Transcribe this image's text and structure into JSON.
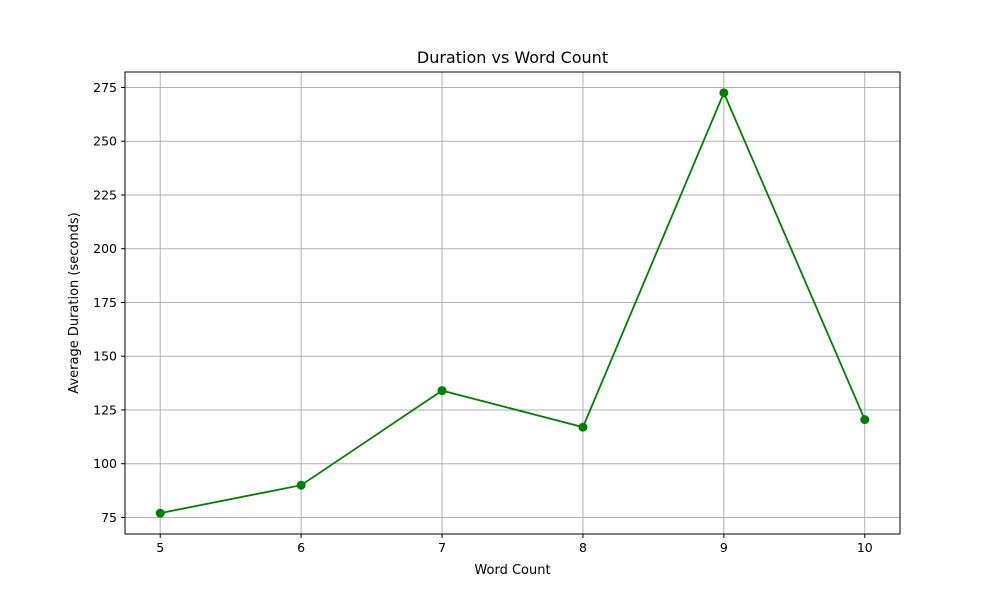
{
  "chart_data": {
    "type": "line",
    "title": "Duration vs Word Count",
    "xlabel": "Word Count",
    "ylabel": "Average Duration (seconds)",
    "x": [
      5,
      6,
      7,
      8,
      9,
      10
    ],
    "series": [
      {
        "values": [
          77,
          90,
          134,
          117,
          272.5,
          120.5
        ],
        "color": "#008000",
        "marker": "circle"
      }
    ],
    "xlim": [
      4.75,
      10.25
    ],
    "ylim": [
      67.3,
      282.2
    ],
    "x_ticks": [
      5,
      6,
      7,
      8,
      9,
      10
    ],
    "y_ticks": [
      75,
      100,
      125,
      150,
      175,
      200,
      225,
      250,
      275
    ],
    "grid": true,
    "colors": {
      "grid": "#b0b0b0",
      "axis": "#000000",
      "line": "#008000"
    }
  }
}
